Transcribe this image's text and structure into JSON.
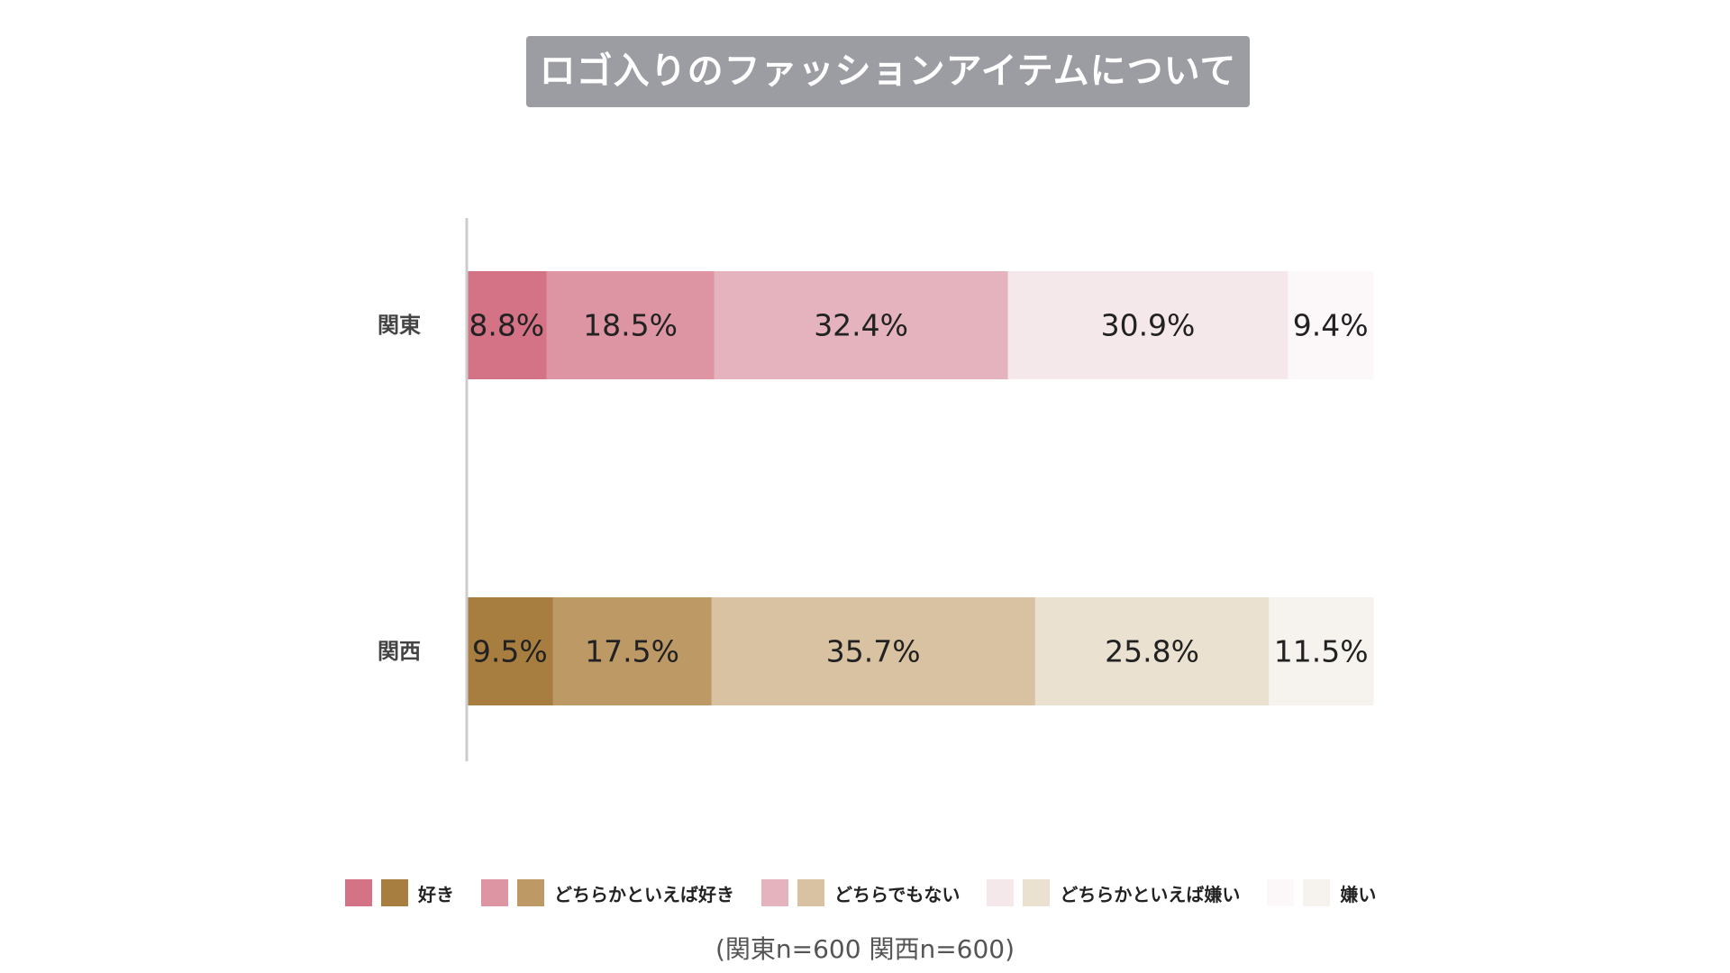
{
  "chart_data": {
    "type": "bar",
    "orientation": "horizontal",
    "stacked": true,
    "title": "ロゴ入りのファッションアイテムについて",
    "categories": [
      "関東",
      "関西"
    ],
    "series": [
      {
        "name": "好き",
        "values": [
          8.8,
          9.5
        ],
        "colors": [
          "#d47385",
          "#a87e40"
        ]
      },
      {
        "name": "どちらかといえば好き",
        "values": [
          18.5,
          17.5
        ],
        "colors": [
          "#dd95a4",
          "#bd9966"
        ]
      },
      {
        "name": "どちらでもない",
        "values": [
          32.4,
          35.7
        ],
        "colors": [
          "#e4b3bd",
          "#d8c2a2"
        ]
      },
      {
        "name": "どちらかといえば嫌い",
        "values": [
          30.9,
          25.8
        ],
        "colors": [
          "#f5e8eb",
          "#ebe1d1"
        ]
      },
      {
        "name": "嫌い",
        "values": [
          9.4,
          11.5
        ],
        "colors": [
          "#fcf7f8",
          "#f6f3ee"
        ]
      }
    ],
    "value_unit": "%",
    "xlim": [
      0,
      100
    ],
    "grid": false,
    "legend_position": "bottom",
    "note": "(関東n=600 関西n=600)"
  }
}
